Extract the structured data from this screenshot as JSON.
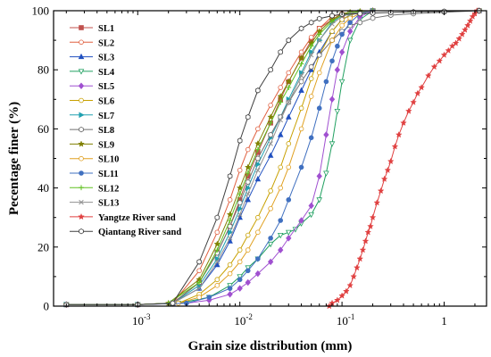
{
  "chart_data": {
    "type": "line",
    "title": "",
    "xlabel": "Grain size distribution (mm)",
    "ylabel": "Pecentage finer (%)",
    "x_scale": "log",
    "xlim": [
      0.00015,
      2.6
    ],
    "ylim": [
      0,
      100
    ],
    "x_ticks": [
      {
        "value": 0.001,
        "base": "10",
        "exp": "-3"
      },
      {
        "value": 0.01,
        "base": "10",
        "exp": "-2"
      },
      {
        "value": 0.1,
        "base": "10",
        "exp": "-1"
      },
      {
        "value": 1,
        "base": "1",
        "exp": ""
      }
    ],
    "y_ticks": [
      0,
      20,
      40,
      60,
      80,
      100
    ],
    "grid": false,
    "legend_position": "top-left",
    "series": [
      {
        "name": "SL1",
        "color": "#c0504d",
        "marker": "square",
        "x": [
          0.0002,
          0.001,
          0.0022,
          0.004,
          0.006,
          0.008,
          0.01,
          0.012,
          0.015,
          0.02,
          0.025,
          0.03,
          0.04,
          0.05,
          0.06,
          0.08,
          0.1,
          0.12,
          0.15,
          0.2,
          2.2
        ],
        "y": [
          0.5,
          0.5,
          1,
          8,
          18,
          27,
          36,
          44,
          52,
          62,
          70,
          76,
          84,
          90,
          94,
          97,
          98.5,
          99,
          99.5,
          100,
          100
        ]
      },
      {
        "name": "SL2",
        "color": "#e06040",
        "marker": "circle-open",
        "x": [
          0.0002,
          0.001,
          0.0022,
          0.004,
          0.006,
          0.008,
          0.01,
          0.012,
          0.015,
          0.02,
          0.025,
          0.03,
          0.04,
          0.05,
          0.06,
          0.08,
          0.1,
          0.15,
          0.2,
          2.2
        ],
        "y": [
          0.5,
          0.5,
          1,
          12,
          25,
          36,
          46,
          53,
          60,
          68,
          74,
          79,
          86,
          91,
          94,
          98,
          99,
          99.5,
          100,
          100
        ]
      },
      {
        "name": "SL3",
        "color": "#2050c0",
        "marker": "triangle",
        "x": [
          0.0002,
          0.001,
          0.0022,
          0.004,
          0.006,
          0.008,
          0.01,
          0.012,
          0.015,
          0.02,
          0.025,
          0.03,
          0.04,
          0.05,
          0.06,
          0.08,
          0.1,
          0.12,
          0.15,
          0.2,
          2.2
        ],
        "y": [
          0.5,
          0.5,
          1,
          6,
          14,
          22,
          30,
          36,
          43,
          51,
          58,
          64,
          73,
          80,
          86,
          93,
          97,
          98.5,
          99.5,
          100,
          100
        ]
      },
      {
        "name": "SL4",
        "color": "#20a060",
        "marker": "triangle-down-open",
        "x": [
          0.0002,
          0.001,
          0.0025,
          0.005,
          0.008,
          0.01,
          0.012,
          0.015,
          0.02,
          0.025,
          0.03,
          0.035,
          0.04,
          0.05,
          0.06,
          0.07,
          0.08,
          0.09,
          0.1,
          0.12,
          0.15,
          0.2,
          2.2
        ],
        "y": [
          0.5,
          0.5,
          1,
          3,
          7,
          10,
          13,
          16,
          21,
          24,
          25,
          26,
          28,
          31,
          36,
          45,
          55,
          66,
          76,
          90,
          97,
          100,
          100
        ]
      },
      {
        "name": "SL5",
        "color": "#a050d0",
        "marker": "diamond",
        "x": [
          0.0002,
          0.001,
          0.003,
          0.005,
          0.008,
          0.01,
          0.012,
          0.015,
          0.02,
          0.025,
          0.03,
          0.04,
          0.05,
          0.06,
          0.07,
          0.08,
          0.09,
          0.1,
          0.12,
          0.15,
          0.2,
          2.2
        ],
        "y": [
          0.5,
          0.5,
          1,
          2,
          4,
          6,
          8,
          11,
          15,
          19,
          23,
          29,
          34,
          44,
          58,
          70,
          80,
          86,
          93,
          98,
          100,
          100
        ]
      },
      {
        "name": "SL6",
        "color": "#c8a000",
        "marker": "circle-open",
        "x": [
          0.0002,
          0.001,
          0.0025,
          0.004,
          0.006,
          0.008,
          0.01,
          0.012,
          0.015,
          0.02,
          0.025,
          0.03,
          0.04,
          0.05,
          0.06,
          0.08,
          0.1,
          0.12,
          0.15,
          0.2,
          2.2
        ],
        "y": [
          0.5,
          0.5,
          1,
          4,
          9,
          14,
          19,
          24,
          30,
          39,
          47,
          55,
          67,
          77,
          85,
          93,
          97,
          98.5,
          99.5,
          100,
          100
        ]
      },
      {
        "name": "SL7",
        "color": "#20a0b0",
        "marker": "triangle-right",
        "x": [
          0.0002,
          0.001,
          0.0022,
          0.004,
          0.006,
          0.008,
          0.01,
          0.012,
          0.015,
          0.02,
          0.025,
          0.03,
          0.04,
          0.05,
          0.06,
          0.08,
          0.1,
          0.12,
          0.15,
          0.2,
          2.2
        ],
        "y": [
          0.5,
          0.5,
          1,
          7,
          16,
          25,
          33,
          40,
          48,
          57,
          64,
          70,
          79,
          86,
          90,
          96,
          98.5,
          99,
          99.5,
          100,
          100
        ]
      },
      {
        "name": "SL8",
        "color": "#707070",
        "marker": "hexagon-open",
        "x": [
          0.0002,
          0.001,
          0.0022,
          0.004,
          0.006,
          0.008,
          0.01,
          0.012,
          0.015,
          0.02,
          0.025,
          0.03,
          0.04,
          0.05,
          0.06,
          0.08,
          0.1,
          0.12,
          0.15,
          0.2,
          0.3,
          0.5,
          1,
          2.2
        ],
        "y": [
          0.5,
          0.5,
          1,
          8,
          18,
          27,
          35,
          42,
          50,
          58,
          64,
          69,
          76,
          81,
          85,
          90,
          93,
          95,
          96,
          97.5,
          98.5,
          99,
          99.5,
          100
        ]
      },
      {
        "name": "SL9",
        "color": "#808000",
        "marker": "star",
        "x": [
          0.0002,
          0.001,
          0.002,
          0.004,
          0.006,
          0.008,
          0.01,
          0.012,
          0.015,
          0.02,
          0.025,
          0.03,
          0.04,
          0.05,
          0.06,
          0.08,
          0.1,
          0.12,
          0.15,
          0.2,
          2.2
        ],
        "y": [
          0.5,
          0.5,
          1,
          9,
          21,
          31,
          40,
          47,
          55,
          64,
          71,
          76,
          84,
          89,
          93,
          97,
          99,
          99.5,
          99.8,
          100,
          100
        ]
      },
      {
        "name": "SL10",
        "color": "#e0a020",
        "marker": "circle-open",
        "x": [
          0.0002,
          0.001,
          0.0025,
          0.004,
          0.006,
          0.008,
          0.01,
          0.012,
          0.015,
          0.02,
          0.025,
          0.03,
          0.04,
          0.05,
          0.06,
          0.08,
          0.1,
          0.12,
          0.15,
          0.2,
          2.2
        ],
        "y": [
          0.5,
          0.5,
          1,
          3,
          7,
          11,
          15,
          19,
          25,
          33,
          40,
          47,
          60,
          71,
          79,
          90,
          95,
          97.5,
          99,
          100,
          100
        ]
      },
      {
        "name": "SL11",
        "color": "#4070c0",
        "marker": "circle",
        "x": [
          0.0002,
          0.001,
          0.003,
          0.005,
          0.008,
          0.01,
          0.012,
          0.015,
          0.02,
          0.025,
          0.03,
          0.04,
          0.05,
          0.06,
          0.07,
          0.08,
          0.09,
          0.1,
          0.12,
          0.15,
          0.2,
          2.2
        ],
        "y": [
          0.5,
          0.5,
          1,
          3,
          6,
          9,
          12,
          16,
          23,
          29,
          36,
          47,
          57,
          67,
          76,
          83,
          88,
          92,
          96,
          99,
          100,
          100
        ]
      },
      {
        "name": "SL12",
        "color": "#60c020",
        "marker": "plus",
        "x": [
          0.0002,
          0.001,
          0.002,
          0.004,
          0.006,
          0.008,
          0.01,
          0.012,
          0.015,
          0.02,
          0.025,
          0.03,
          0.04,
          0.05,
          0.06,
          0.08,
          0.1,
          0.12,
          0.15,
          0.2,
          2.2
        ],
        "y": [
          0.5,
          0.5,
          1,
          8,
          19,
          29,
          38,
          45,
          53,
          62,
          69,
          74,
          82,
          88,
          92,
          96.5,
          98.5,
          99.3,
          99.7,
          100,
          100
        ]
      },
      {
        "name": "SL13",
        "color": "#909090",
        "marker": "cross",
        "x": [
          0.0002,
          0.001,
          0.0022,
          0.004,
          0.006,
          0.008,
          0.01,
          0.012,
          0.015,
          0.02,
          0.025,
          0.03,
          0.04,
          0.05,
          0.06,
          0.08,
          0.1,
          0.12,
          0.15,
          0.2,
          2.2
        ],
        "y": [
          0.5,
          0.5,
          1,
          6,
          15,
          23,
          31,
          38,
          46,
          55,
          63,
          69,
          78,
          85,
          90,
          95.5,
          98,
          99,
          99.5,
          100,
          100
        ]
      },
      {
        "name": "Yangtze River sand",
        "color": "#e04040",
        "marker": "star",
        "x": [
          0.075,
          0.08,
          0.09,
          0.1,
          0.11,
          0.12,
          0.13,
          0.14,
          0.15,
          0.16,
          0.17,
          0.18,
          0.19,
          0.2,
          0.22,
          0.24,
          0.26,
          0.28,
          0.3,
          0.33,
          0.36,
          0.4,
          0.45,
          0.5,
          0.55,
          0.6,
          0.7,
          0.8,
          0.9,
          1,
          1.1,
          1.2,
          1.3,
          1.4,
          1.5,
          1.6,
          1.7,
          1.8,
          1.9,
          2,
          2.1
        ],
        "y": [
          0,
          1,
          2,
          3.5,
          5,
          7,
          10,
          13,
          16,
          19,
          22,
          25,
          27,
          30,
          35,
          39,
          43,
          46,
          49,
          54,
          58,
          62,
          66,
          69,
          72,
          74,
          78,
          81,
          83,
          85,
          86.5,
          88,
          89,
          90.5,
          92,
          93.5,
          95,
          96.5,
          98,
          99,
          100
        ]
      },
      {
        "name": "Qiantang River sand",
        "color": "#404040",
        "marker": "hexagon-open",
        "x": [
          0.0002,
          0.001,
          0.0022,
          0.004,
          0.006,
          0.008,
          0.01,
          0.012,
          0.015,
          0.02,
          0.025,
          0.03,
          0.04,
          0.05,
          0.06,
          0.08,
          0.1,
          0.15,
          0.2,
          0.3,
          0.5,
          1,
          2.2
        ],
        "y": [
          0.5,
          0.5,
          1,
          15,
          30,
          44,
          56,
          64,
          73,
          80,
          86,
          90,
          94,
          96,
          97.3,
          98.3,
          98.8,
          99,
          99.2,
          99.4,
          99.6,
          99.8,
          100
        ]
      }
    ]
  }
}
